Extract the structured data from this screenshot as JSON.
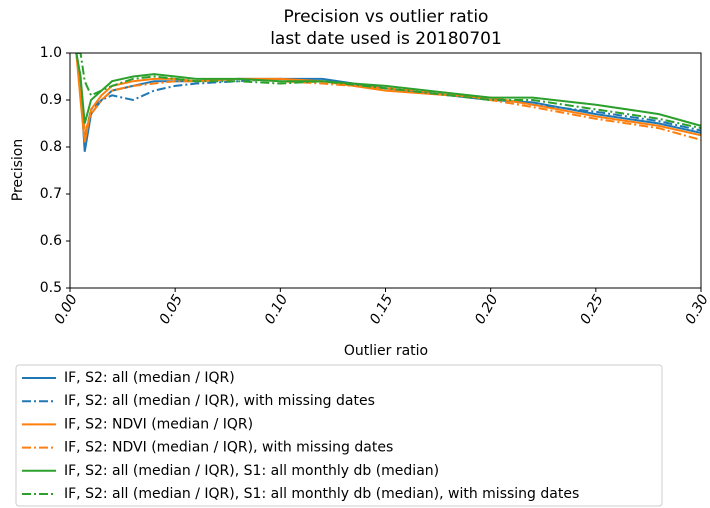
{
  "chart_data": {
    "type": "line",
    "title": "Precision vs outlier ratio",
    "subtitle": "last date used is 20180701",
    "xlabel": "Outlier ratio",
    "ylabel": "Precision",
    "xlim": [
      0,
      0.3
    ],
    "ylim": [
      0.5,
      1.0
    ],
    "xticks": [
      {
        "value": 0,
        "label": "0.00"
      },
      {
        "value": 0.05,
        "label": "0.05"
      },
      {
        "value": 0.1,
        "label": "0.10"
      },
      {
        "value": 0.15,
        "label": "0.15"
      },
      {
        "value": 0.2,
        "label": "0.20"
      },
      {
        "value": 0.25,
        "label": "0.25"
      },
      {
        "value": 0.3,
        "label": "0.30"
      }
    ],
    "yticks": [
      0.5,
      0.6,
      0.7,
      0.8,
      0.9,
      {
        "value": 1.0,
        "label": "1.0"
      }
    ],
    "grid": false,
    "legend": "below",
    "x": [
      0.003,
      0.005,
      0.007,
      0.01,
      0.015,
      0.02,
      0.03,
      0.04,
      0.05,
      0.06,
      0.08,
      0.1,
      0.12,
      0.15,
      0.18,
      0.2,
      0.22,
      0.25,
      0.28,
      0.3
    ],
    "series": [
      {
        "name": "IF, S2: all (median / IQR)",
        "color": "#1f77b4",
        "dash": "solid",
        "values": [
          1.0,
          0.93,
          0.79,
          0.87,
          0.9,
          0.92,
          0.93,
          0.94,
          0.94,
          0.94,
          0.945,
          0.945,
          0.945,
          0.925,
          0.91,
          0.9,
          0.895,
          0.87,
          0.85,
          0.83
        ]
      },
      {
        "name": "IF, S2: all (median / IQR), with missing dates",
        "color": "#1f77b4",
        "dash": "dashdot",
        "values": [
          1.0,
          0.95,
          0.82,
          0.88,
          0.9,
          0.91,
          0.9,
          0.92,
          0.93,
          0.935,
          0.94,
          0.945,
          0.94,
          0.925,
          0.91,
          0.905,
          0.89,
          0.875,
          0.855,
          0.835
        ]
      },
      {
        "name": "IF, S2: NDVI (median / IQR)",
        "color": "#ff7f0e",
        "dash": "solid",
        "values": [
          1.0,
          0.9,
          0.81,
          0.88,
          0.91,
          0.93,
          0.94,
          0.945,
          0.945,
          0.94,
          0.945,
          0.945,
          0.94,
          0.92,
          0.91,
          0.905,
          0.89,
          0.865,
          0.845,
          0.825
        ]
      },
      {
        "name": "IF, S2: NDVI (median / IQR), with missing dates",
        "color": "#ff7f0e",
        "dash": "dashdot",
        "values": [
          1.0,
          0.92,
          0.83,
          0.87,
          0.9,
          0.92,
          0.93,
          0.935,
          0.94,
          0.94,
          0.945,
          0.94,
          0.935,
          0.925,
          0.915,
          0.9,
          0.885,
          0.86,
          0.84,
          0.815
        ]
      },
      {
        "name": "IF, S2: all (median / IQR), S1: all monthly db (median)",
        "color": "#2ca02c",
        "dash": "solid",
        "values": [
          1.0,
          0.95,
          0.85,
          0.9,
          0.92,
          0.94,
          0.95,
          0.955,
          0.95,
          0.945,
          0.945,
          0.94,
          0.94,
          0.93,
          0.915,
          0.905,
          0.905,
          0.89,
          0.87,
          0.845
        ]
      },
      {
        "name": "IF, S2: all (median / IQR), S1: all monthly db (median), with missing dates",
        "color": "#2ca02c",
        "dash": "dashdot",
        "values": [
          1.0,
          1.0,
          0.94,
          0.91,
          0.92,
          0.93,
          0.945,
          0.95,
          0.945,
          0.94,
          0.94,
          0.935,
          0.94,
          0.925,
          0.91,
          0.9,
          0.9,
          0.88,
          0.86,
          0.84
        ]
      }
    ]
  }
}
